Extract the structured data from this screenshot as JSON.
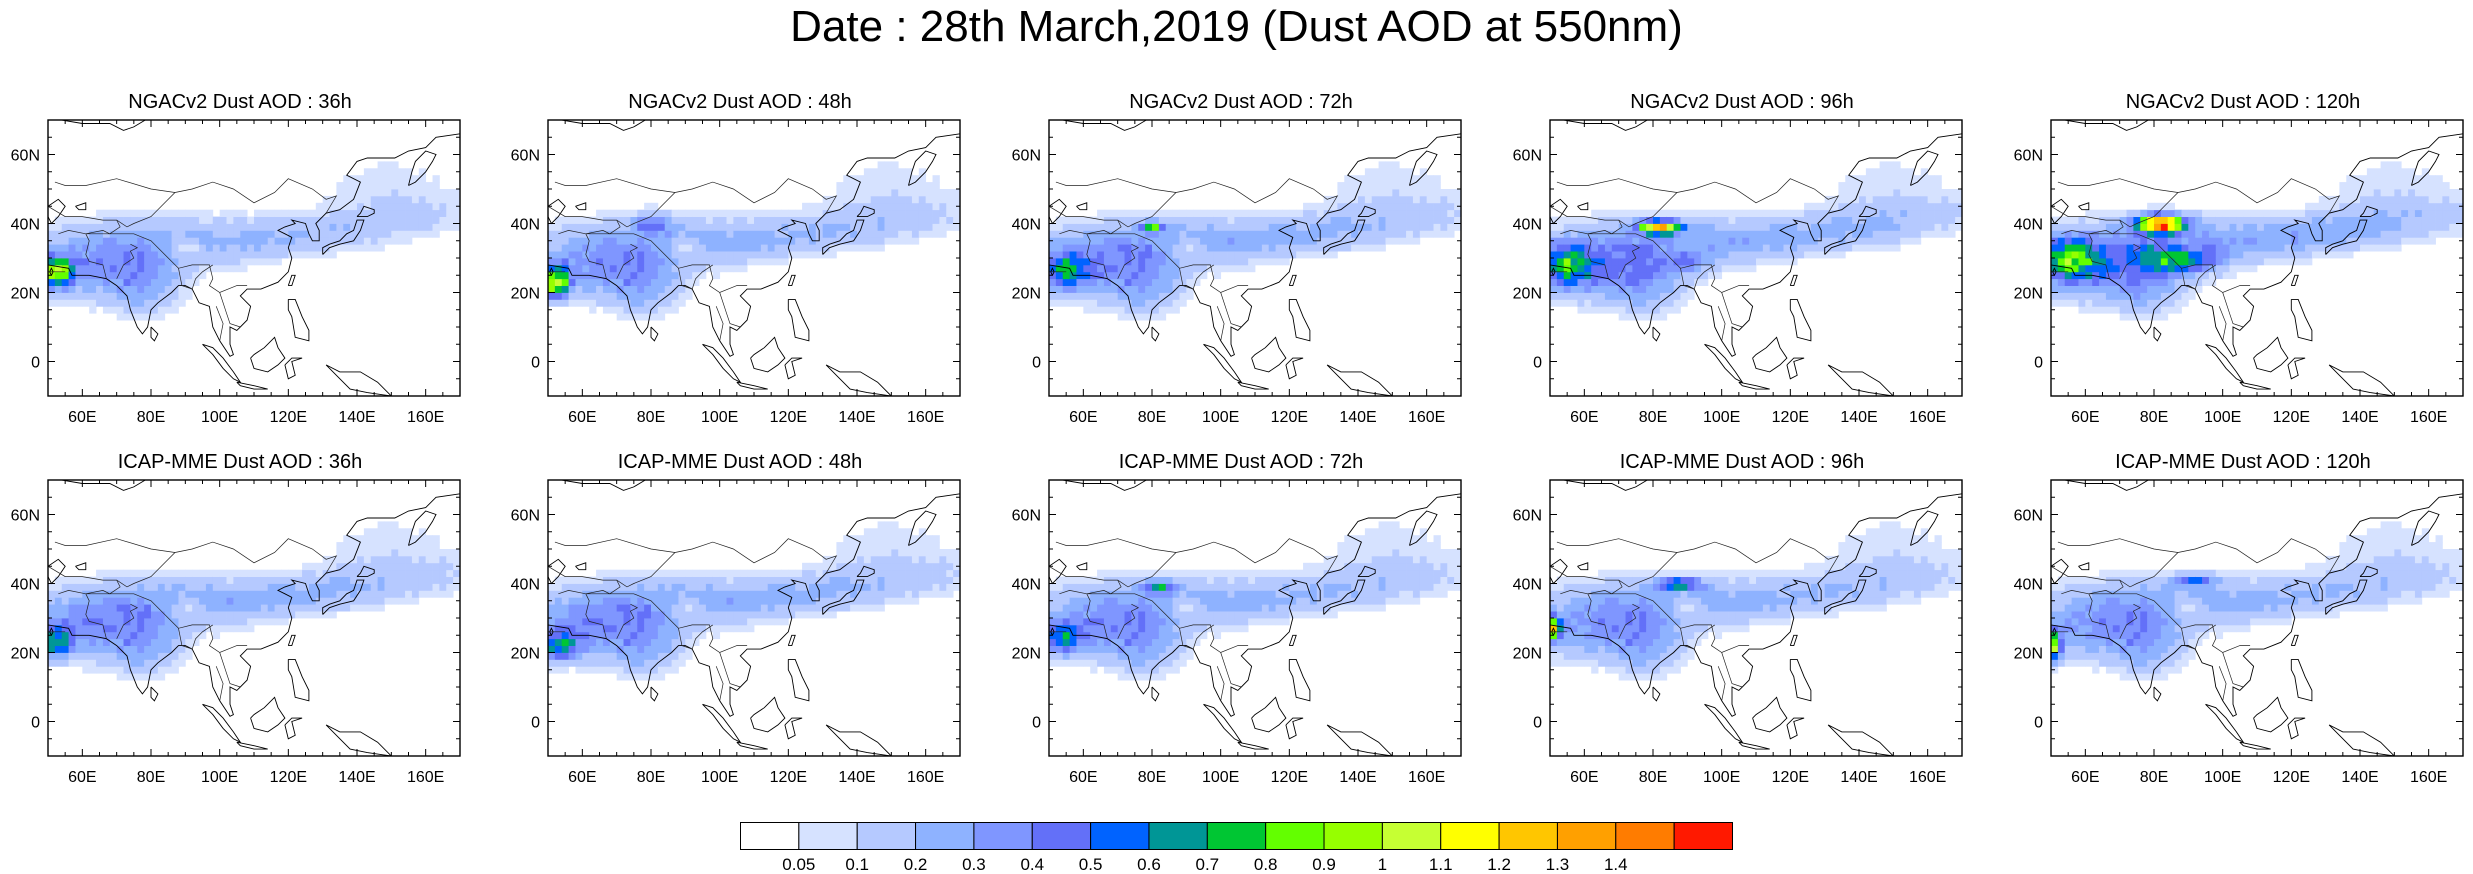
{
  "title": "Date : 28th March,2019 (Dust AOD at 550nm)",
  "panels": [
    {
      "title": "NGACv2 Dust AOD : 36h",
      "model": "NGACv2",
      "lead_hours": 36
    },
    {
      "title": "NGACv2 Dust AOD : 48h",
      "model": "NGACv2",
      "lead_hours": 48
    },
    {
      "title": "NGACv2 Dust AOD : 72h",
      "model": "NGACv2",
      "lead_hours": 72
    },
    {
      "title": "NGACv2 Dust AOD : 96h",
      "model": "NGACv2",
      "lead_hours": 96
    },
    {
      "title": "NGACv2 Dust AOD : 120h",
      "model": "NGACv2",
      "lead_hours": 120
    },
    {
      "title": "ICAP-MME Dust AOD : 36h",
      "model": "ICAP-MME",
      "lead_hours": 36
    },
    {
      "title": "ICAP-MME Dust AOD : 48h",
      "model": "ICAP-MME",
      "lead_hours": 48
    },
    {
      "title": "ICAP-MME Dust AOD : 72h",
      "model": "ICAP-MME",
      "lead_hours": 72
    },
    {
      "title": "ICAP-MME Dust AOD : 96h",
      "model": "ICAP-MME",
      "lead_hours": 96
    },
    {
      "title": "ICAP-MME Dust AOD : 120h",
      "model": "ICAP-MME",
      "lead_hours": 120
    }
  ],
  "map": {
    "lon_range": [
      50,
      170
    ],
    "lat_range": [
      -10,
      70
    ],
    "lon_ticks": [
      60,
      80,
      100,
      120,
      140,
      160
    ],
    "lon_tick_labels": [
      "60E",
      "80E",
      "100E",
      "120E",
      "140E",
      "160E"
    ],
    "lat_ticks": [
      0,
      20,
      40,
      60
    ],
    "lat_tick_labels": [
      "0",
      "20N",
      "40N",
      "60N"
    ]
  },
  "colorbar": {
    "labels": [
      "0.05",
      "0.1",
      "0.2",
      "0.3",
      "0.4",
      "0.5",
      "0.6",
      "0.7",
      "0.8",
      "0.9",
      "1",
      "1.1",
      "1.2",
      "1.3",
      "1.4"
    ],
    "colors": [
      "#ffffff",
      "#d6e2ff",
      "#b5c9ff",
      "#8eb2ff",
      "#7f96ff",
      "#6370f8",
      "#0063ff",
      "#009696",
      "#00c633",
      "#63ff00",
      "#96ff00",
      "#c6ff33",
      "#ffff00",
      "#ffc600",
      "#ffa000",
      "#ff7c00",
      "#ff1900"
    ]
  }
}
